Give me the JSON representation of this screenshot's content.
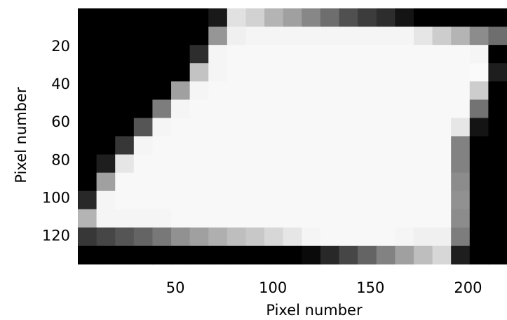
{
  "chart_data": {
    "type": "heatmap",
    "title": "",
    "xlabel": "Pixel number",
    "ylabel": "Pixel number",
    "x_ticks": [
      50,
      100,
      150,
      200
    ],
    "y_ticks": [
      20,
      40,
      60,
      80,
      100,
      120
    ],
    "x_tick_labels": [
      "50",
      "100",
      "150",
      "200"
    ],
    "y_tick_labels": [
      "20",
      "40",
      "60",
      "80",
      "100",
      "120"
    ],
    "xlim": [
      0,
      220
    ],
    "ylim": [
      0,
      135
    ],
    "grid": false,
    "colormap": "grayscale (0 = black, 255 = white)",
    "values": [
      [
        0,
        0,
        0,
        0,
        0,
        0,
        0,
        25,
        225,
        210,
        180,
        160,
        135,
        110,
        80,
        60,
        45,
        20,
        0,
        0,
        0,
        0,
        0
      ],
      [
        0,
        0,
        0,
        0,
        0,
        0,
        0,
        150,
        240,
        245,
        245,
        245,
        245,
        245,
        245,
        245,
        245,
        245,
        230,
        205,
        180,
        140,
        110
      ],
      [
        0,
        0,
        0,
        0,
        0,
        0,
        45,
        245,
        248,
        248,
        248,
        248,
        248,
        248,
        248,
        248,
        248,
        248,
        248,
        248,
        248,
        245,
        0
      ],
      [
        0,
        0,
        0,
        0,
        0,
        0,
        195,
        245,
        248,
        248,
        248,
        248,
        248,
        248,
        248,
        248,
        248,
        248,
        248,
        248,
        248,
        250,
        30
      ],
      [
        0,
        0,
        0,
        0,
        0,
        160,
        245,
        248,
        248,
        248,
        248,
        248,
        248,
        248,
        248,
        248,
        248,
        248,
        248,
        248,
        248,
        205,
        0
      ],
      [
        0,
        0,
        0,
        0,
        125,
        245,
        248,
        248,
        248,
        248,
        248,
        248,
        248,
        248,
        248,
        248,
        248,
        248,
        248,
        248,
        248,
        115,
        0
      ],
      [
        0,
        0,
        0,
        85,
        245,
        248,
        248,
        248,
        248,
        248,
        248,
        248,
        248,
        248,
        248,
        248,
        248,
        248,
        248,
        248,
        230,
        20,
        0
      ],
      [
        0,
        0,
        55,
        245,
        248,
        248,
        248,
        248,
        248,
        248,
        248,
        248,
        248,
        248,
        248,
        248,
        248,
        248,
        248,
        248,
        130,
        0,
        0
      ],
      [
        0,
        30,
        230,
        248,
        248,
        248,
        248,
        248,
        248,
        248,
        248,
        248,
        248,
        248,
        248,
        248,
        248,
        248,
        248,
        248,
        130,
        0,
        0
      ],
      [
        0,
        160,
        248,
        248,
        248,
        248,
        248,
        248,
        248,
        248,
        248,
        248,
        248,
        248,
        248,
        248,
        248,
        248,
        248,
        248,
        140,
        0,
        0
      ],
      [
        40,
        245,
        248,
        248,
        248,
        248,
        248,
        248,
        248,
        248,
        248,
        248,
        248,
        248,
        248,
        248,
        248,
        248,
        248,
        248,
        145,
        0,
        0
      ],
      [
        180,
        245,
        245,
        245,
        245,
        248,
        248,
        248,
        248,
        248,
        248,
        248,
        248,
        248,
        248,
        248,
        248,
        248,
        248,
        248,
        140,
        0,
        0
      ],
      [
        55,
        70,
        85,
        100,
        120,
        145,
        160,
        175,
        190,
        200,
        215,
        230,
        245,
        248,
        248,
        248,
        248,
        245,
        240,
        240,
        125,
        0,
        0
      ],
      [
        0,
        0,
        0,
        0,
        0,
        0,
        0,
        0,
        0,
        0,
        0,
        0,
        10,
        40,
        70,
        100,
        130,
        160,
        190,
        215,
        30,
        0,
        0
      ]
    ]
  }
}
